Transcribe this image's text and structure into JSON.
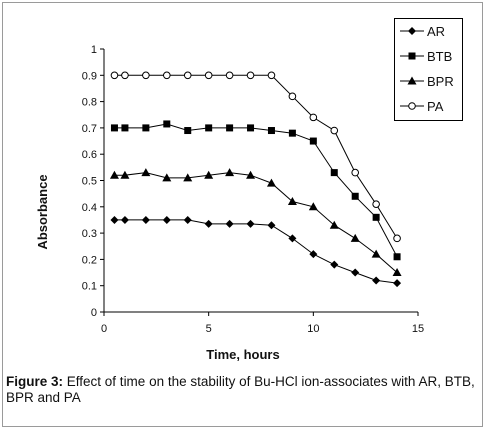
{
  "figure": {
    "label": "Figure 3:",
    "caption": "Effect of time on the stability of Bu-HCl ion-associates with AR, BTB, BPR and PA"
  },
  "chart_data": {
    "type": "line",
    "xlabel": "Time, hours",
    "ylabel": "Absorbance",
    "xlim": [
      0,
      15
    ],
    "ylim": [
      0,
      1
    ],
    "x_ticks": [
      "0",
      "5",
      "10",
      "15"
    ],
    "y_ticks": [
      "0",
      "0.1",
      "0.2",
      "0.3",
      "0.4",
      "0.5",
      "0.6",
      "0.7",
      "0.8",
      "0.9",
      "1"
    ],
    "grid": false,
    "legend_position": "top-right",
    "series": [
      {
        "name": "AR",
        "marker": "diamond",
        "x": [
          0.5,
          1,
          2,
          3,
          4,
          5,
          6,
          7,
          8,
          9,
          10,
          11,
          12,
          13,
          14
        ],
        "y": [
          0.35,
          0.35,
          0.35,
          0.35,
          0.35,
          0.335,
          0.335,
          0.335,
          0.33,
          0.28,
          0.22,
          0.18,
          0.15,
          0.12,
          0.11
        ]
      },
      {
        "name": "BTB",
        "marker": "square",
        "x": [
          0.5,
          1,
          2,
          3,
          4,
          5,
          6,
          7,
          8,
          9,
          10,
          11,
          12,
          13,
          14
        ],
        "y": [
          0.7,
          0.7,
          0.7,
          0.715,
          0.69,
          0.7,
          0.7,
          0.7,
          0.69,
          0.68,
          0.65,
          0.53,
          0.44,
          0.36,
          0.21
        ]
      },
      {
        "name": "BPR",
        "marker": "triangle",
        "x": [
          0.5,
          1,
          2,
          3,
          4,
          5,
          6,
          7,
          8,
          9,
          10,
          11,
          12,
          13,
          14
        ],
        "y": [
          0.52,
          0.52,
          0.53,
          0.51,
          0.51,
          0.52,
          0.53,
          0.52,
          0.49,
          0.42,
          0.4,
          0.33,
          0.28,
          0.22,
          0.15
        ]
      },
      {
        "name": "PA",
        "marker": "circle",
        "x": [
          0.5,
          1,
          2,
          3,
          4,
          5,
          6,
          7,
          8,
          9,
          10,
          11,
          12,
          13,
          14
        ],
        "y": [
          0.9,
          0.9,
          0.9,
          0.9,
          0.9,
          0.9,
          0.9,
          0.9,
          0.9,
          0.82,
          0.74,
          0.69,
          0.53,
          0.41,
          0.28
        ]
      }
    ]
  }
}
